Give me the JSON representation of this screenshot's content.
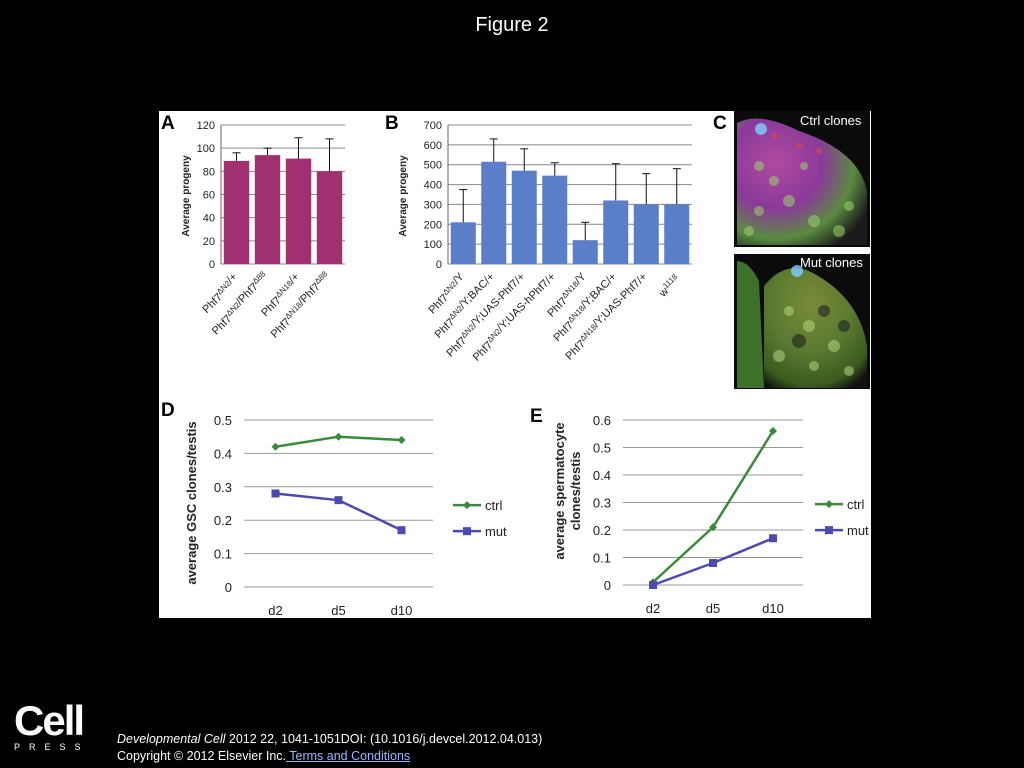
{
  "title": "Figure 2",
  "chart_data": [
    {
      "panel": "A",
      "type": "bar",
      "ylabel": "Average progeny",
      "ylim": [
        0,
        120
      ],
      "yticks": [
        0,
        20,
        40,
        60,
        80,
        100,
        120
      ],
      "categories": [
        "Phf7ΔN2/+",
        "Phf7ΔN2/Phf7Δ88",
        "Phf7ΔN18/+",
        "Phf7ΔN18/Phf7Δ88"
      ],
      "values": [
        89,
        94,
        91,
        80
      ],
      "errors": [
        7,
        6,
        18,
        28
      ],
      "color": "#a03070",
      "grid": true
    },
    {
      "panel": "B",
      "type": "bar",
      "ylabel": "Average progeny",
      "ylim": [
        0,
        700
      ],
      "yticks": [
        0,
        100,
        200,
        300,
        400,
        500,
        600,
        700
      ],
      "categories": [
        "Phf7ΔN2/Y",
        "Phf7ΔN2/Y;BAC/+",
        "Phf7ΔN2/Y;UAS-Phf7/+",
        "Phf7ΔN2/Y;UAS-hPhf7/+",
        "Phf7ΔN18/Y",
        "Phf7ΔN18/Y;BAC/+",
        "Phf7ΔN18/Y;UAS-Phf7/+",
        "w1118"
      ],
      "values": [
        210,
        515,
        470,
        445,
        120,
        320,
        300,
        300
      ],
      "errors": [
        165,
        115,
        110,
        65,
        90,
        185,
        155,
        180
      ],
      "color": "#5a7ec8",
      "grid": true
    },
    {
      "panel": "D",
      "type": "line",
      "ylabel": "average GSC clones/testis",
      "ylim": [
        0,
        0.5
      ],
      "yticks": [
        "0",
        "0.1",
        "0.2",
        "0.3",
        "0.4",
        "0.5"
      ],
      "categories": [
        "d2",
        "d5",
        "d10"
      ],
      "series": [
        {
          "name": "ctrl",
          "values": [
            0.42,
            0.45,
            0.44
          ],
          "color": "#3a8a3a",
          "marker": "diamond"
        },
        {
          "name": "mut",
          "values": [
            0.28,
            0.26,
            0.17
          ],
          "color": "#4a4ab0",
          "marker": "square"
        }
      ],
      "legend": "right",
      "grid": true
    },
    {
      "panel": "E",
      "type": "line",
      "ylabel": "average spermatocyte clones/testis",
      "ylim": [
        0,
        0.6
      ],
      "yticks": [
        "0",
        "0.1",
        "0.2",
        "0.3",
        "0.4",
        "0.5",
        "0.6"
      ],
      "categories": [
        "d2",
        "d5",
        "d10"
      ],
      "series": [
        {
          "name": "ctrl",
          "values": [
            0.01,
            0.21,
            0.56
          ],
          "color": "#3a8a3a",
          "marker": "diamond"
        },
        {
          "name": "mut",
          "values": [
            0.0,
            0.08,
            0.17
          ],
          "color": "#4a4ab0",
          "marker": "square"
        }
      ],
      "legend": "right",
      "grid": true
    }
  ],
  "panel_c": {
    "label": "C",
    "top_caption": "Ctrl clones",
    "bottom_caption": "Mut clones"
  },
  "logo": {
    "word": "Cell",
    "sub": "PRESS"
  },
  "citation": {
    "journal": "Developmental Cell",
    "details": " 2012 22, 1041-1051DOI: (10.1016/j.devcel.2012.04.013)",
    "copyright": "Copyright © 2012 Elsevier Inc.",
    "link": " Terms and Conditions"
  }
}
